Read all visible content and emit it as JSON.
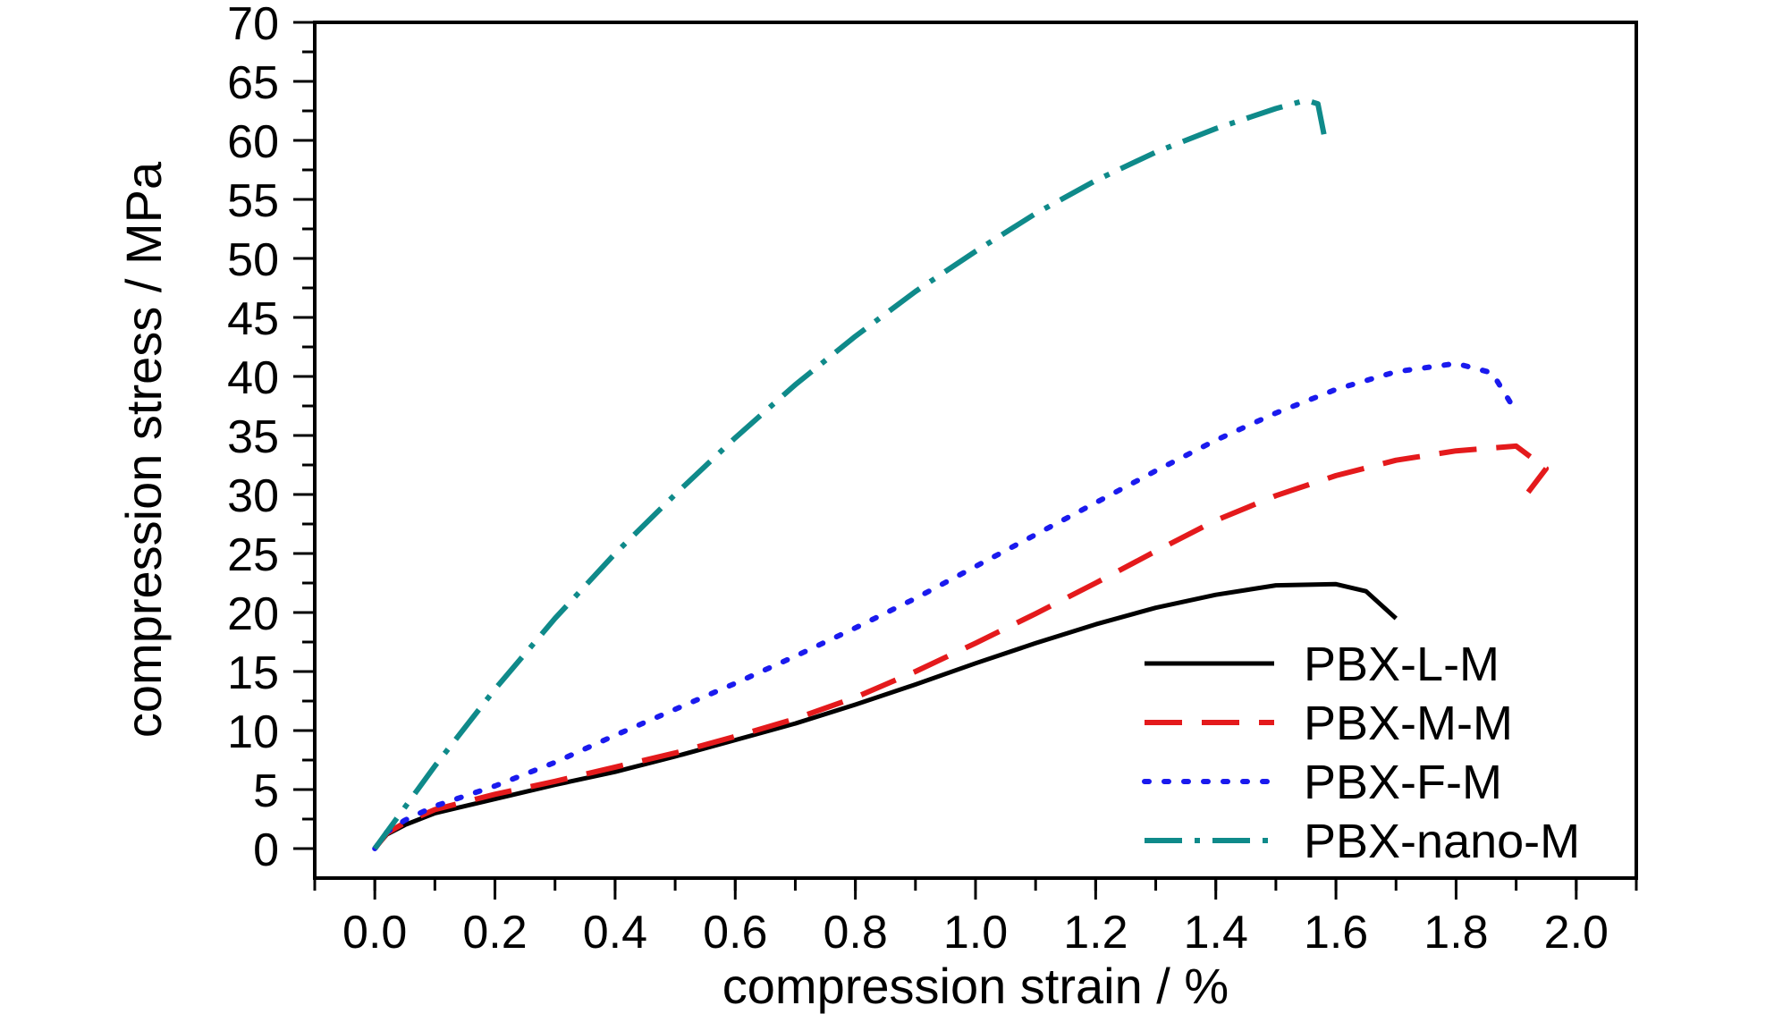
{
  "chart_data": {
    "type": "line",
    "xlabel": "compression strain / %",
    "ylabel": "compression stress / MPa",
    "xlim": [
      -0.1,
      2.1
    ],
    "ylim": [
      -2.5,
      70
    ],
    "x_ticks": [
      "0.0",
      "0.2",
      "0.4",
      "0.6",
      "0.8",
      "1.0",
      "1.2",
      "1.4",
      "1.6",
      "1.8",
      "2.0"
    ],
    "y_ticks": [
      "0",
      "5",
      "10",
      "15",
      "20",
      "25",
      "30",
      "35",
      "40",
      "45",
      "50",
      "55",
      "60",
      "65",
      "70"
    ],
    "grid": false,
    "legend_position": "bottom-right",
    "series": [
      {
        "name": "PBX-L-M",
        "color": "#000000",
        "style": "solid",
        "points": [
          [
            0,
            0
          ],
          [
            0.02,
            1.2
          ],
          [
            0.05,
            2.0
          ],
          [
            0.1,
            3.0
          ],
          [
            0.2,
            4.2
          ],
          [
            0.3,
            5.4
          ],
          [
            0.4,
            6.5
          ],
          [
            0.5,
            7.8
          ],
          [
            0.6,
            9.2
          ],
          [
            0.7,
            10.6
          ],
          [
            0.8,
            12.2
          ],
          [
            0.9,
            13.9
          ],
          [
            1.0,
            15.7
          ],
          [
            1.1,
            17.4
          ],
          [
            1.2,
            19.0
          ],
          [
            1.3,
            20.4
          ],
          [
            1.4,
            21.5
          ],
          [
            1.5,
            22.3
          ],
          [
            1.6,
            22.4
          ],
          [
            1.65,
            21.8
          ],
          [
            1.7,
            19.5
          ]
        ]
      },
      {
        "name": "PBX-M-M",
        "color": "#e41a1c",
        "style": "dashed",
        "points": [
          [
            0,
            0
          ],
          [
            0.02,
            1.3
          ],
          [
            0.05,
            2.2
          ],
          [
            0.1,
            3.3
          ],
          [
            0.2,
            4.6
          ],
          [
            0.3,
            5.7
          ],
          [
            0.4,
            6.9
          ],
          [
            0.5,
            8.1
          ],
          [
            0.6,
            9.5
          ],
          [
            0.7,
            11.0
          ],
          [
            0.8,
            12.8
          ],
          [
            0.9,
            15.0
          ],
          [
            1.0,
            17.4
          ],
          [
            1.1,
            19.9
          ],
          [
            1.2,
            22.5
          ],
          [
            1.3,
            25.2
          ],
          [
            1.4,
            27.8
          ],
          [
            1.5,
            29.9
          ],
          [
            1.6,
            31.6
          ],
          [
            1.7,
            32.9
          ],
          [
            1.8,
            33.7
          ],
          [
            1.9,
            34.1
          ],
          [
            1.95,
            32.2
          ],
          [
            1.92,
            30.2
          ]
        ]
      },
      {
        "name": "PBX-F-M",
        "color": "#1a1aee",
        "style": "dotted",
        "points": [
          [
            0,
            0
          ],
          [
            0.02,
            1.4
          ],
          [
            0.05,
            2.4
          ],
          [
            0.1,
            3.6
          ],
          [
            0.2,
            5.3
          ],
          [
            0.3,
            7.3
          ],
          [
            0.4,
            9.6
          ],
          [
            0.5,
            11.8
          ],
          [
            0.6,
            14.0
          ],
          [
            0.7,
            16.3
          ],
          [
            0.8,
            18.7
          ],
          [
            0.9,
            21.2
          ],
          [
            1.0,
            23.9
          ],
          [
            1.1,
            26.6
          ],
          [
            1.2,
            29.3
          ],
          [
            1.3,
            32.0
          ],
          [
            1.4,
            34.6
          ],
          [
            1.5,
            36.9
          ],
          [
            1.6,
            38.9
          ],
          [
            1.7,
            40.4
          ],
          [
            1.8,
            41.1
          ],
          [
            1.86,
            40.3
          ],
          [
            1.9,
            37.0
          ]
        ]
      },
      {
        "name": "PBX-nano-M",
        "color": "#0f8a8a",
        "style": "dashdot",
        "points": [
          [
            0,
            0
          ],
          [
            0.05,
            3.5
          ],
          [
            0.1,
            7.0
          ],
          [
            0.2,
            13.5
          ],
          [
            0.3,
            19.5
          ],
          [
            0.4,
            25.0
          ],
          [
            0.5,
            30.0
          ],
          [
            0.6,
            34.8
          ],
          [
            0.7,
            39.3
          ],
          [
            0.8,
            43.4
          ],
          [
            0.9,
            47.2
          ],
          [
            1.0,
            50.6
          ],
          [
            1.1,
            53.8
          ],
          [
            1.2,
            56.6
          ],
          [
            1.3,
            59.0
          ],
          [
            1.4,
            61.0
          ],
          [
            1.5,
            62.7
          ],
          [
            1.55,
            63.4
          ],
          [
            1.57,
            63.1
          ],
          [
            1.58,
            60.5
          ]
        ]
      }
    ]
  }
}
